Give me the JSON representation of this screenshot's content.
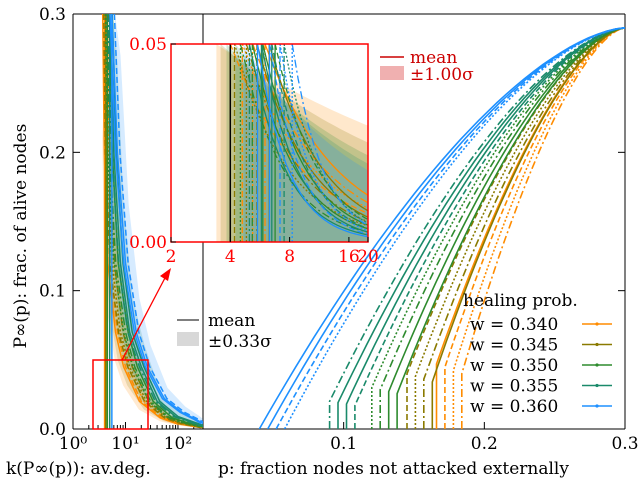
{
  "chart_data": {
    "type": "line",
    "ylabel": "P∞(p): frac. of alive nodes",
    "ylim": [
      0,
      0.3
    ],
    "yticks": [
      "0.0",
      "0.1",
      "0.2",
      "0.3"
    ],
    "series_colors": [
      "#ff8c00",
      "#8a7a00",
      "#2e8b2e",
      "#1a8a6a",
      "#1e90ff"
    ],
    "legend": {
      "title": "healing prob.",
      "placement": "lower-right",
      "entries": [
        "w = 0.340",
        "w = 0.345",
        "w = 0.350",
        "w = 0.355",
        "w = 0.360"
      ]
    },
    "panels": [
      {
        "name": "left",
        "xlabel": "k(P∞(p)): av.deg.",
        "xscale": "log",
        "xlim": [
          1,
          300
        ],
        "xticks": [
          "10⁰",
          "10¹",
          "10²"
        ],
        "band_label": "±0.33σ",
        "mean_label": "mean",
        "series": [
          {
            "w": 0.34,
            "k_threshold": 4.0,
            "x": [
              4.0,
              4.3,
              5,
              7,
              10,
              20,
              50,
              100,
              300
            ],
            "y": [
              0.3,
              0.2,
              0.12,
              0.07,
              0.045,
              0.02,
              0.008,
              0.004,
              0.001
            ]
          },
          {
            "w": 0.345,
            "k_threshold": 4.2,
            "x": [
              4.2,
              4.5,
              5.5,
              8,
              12,
              25,
              60,
              120,
              300
            ],
            "y": [
              0.3,
              0.2,
              0.12,
              0.07,
              0.045,
              0.02,
              0.008,
              0.004,
              0.001
            ]
          },
          {
            "w": 0.35,
            "k_threshold": 4.5,
            "x": [
              4.5,
              5,
              6.5,
              10,
              15,
              30,
              70,
              150,
              300
            ],
            "y": [
              0.3,
              0.2,
              0.12,
              0.07,
              0.045,
              0.02,
              0.008,
              0.004,
              0.0015
            ]
          },
          {
            "w": 0.355,
            "k_threshold": 5.0,
            "x": [
              5.0,
              6,
              8,
              12,
              20,
              40,
              90,
              180,
              300
            ],
            "y": [
              0.3,
              0.2,
              0.12,
              0.07,
              0.045,
              0.02,
              0.009,
              0.005,
              0.002
            ]
          },
          {
            "w": 0.36,
            "k_threshold": 5.5,
            "x": [
              5.5,
              7,
              10,
              16,
              26,
              55,
              120,
              220,
              300
            ],
            "y": [
              0.3,
              0.2,
              0.12,
              0.07,
              0.045,
              0.022,
              0.012,
              0.007,
              0.004
            ]
          }
        ]
      },
      {
        "name": "right",
        "xlabel": "p: fraction nodes not attacked externally",
        "xscale": "linear",
        "xlim": [
          0,
          0.3
        ],
        "xticks": [
          "0.1",
          "0.2",
          "0.3"
        ],
        "series": [
          {
            "w": 0.34,
            "p_c": 0.166,
            "x": [
              0.166,
              0.17,
              0.2,
              0.25,
              0.3
            ],
            "y": [
              0.047,
              0.09,
              0.15,
              0.23,
              0.286
            ]
          },
          {
            "w": 0.345,
            "p_c": 0.145,
            "x": [
              0.145,
              0.15,
              0.2,
              0.25,
              0.3
            ],
            "y": [
              0.04,
              0.075,
              0.158,
              0.234,
              0.288
            ]
          },
          {
            "w": 0.35,
            "p_c": 0.12,
            "x": [
              0.12,
              0.13,
              0.2,
              0.25,
              0.3
            ],
            "y": [
              0.03,
              0.06,
              0.165,
              0.238,
              0.29
            ]
          },
          {
            "w": 0.355,
            "p_c": 0.09,
            "x": [
              0.09,
              0.1,
              0.2,
              0.25,
              0.3
            ],
            "y": [
              0.02,
              0.04,
              0.172,
              0.242,
              0.292
            ]
          },
          {
            "w": 0.36,
            "p_c": 0.04,
            "x": [
              0.04,
              0.05,
              0.1,
              0.2,
              0.3
            ],
            "y": [
              0.0,
              0.01,
              0.08,
              0.185,
              0.295
            ]
          }
        ]
      }
    ],
    "inset": {
      "xscale": "log",
      "xlim": [
        2,
        20
      ],
      "ylim": [
        0,
        0.05
      ],
      "xticks": [
        "2",
        "4",
        "8",
        "16",
        "20"
      ],
      "yticks": [
        "0.00",
        "0.05"
      ],
      "mean_label": "mean",
      "band_label": "±1.00σ",
      "zoom_of": {
        "x": [
          2,
          20
        ],
        "y": [
          0,
          0.05
        ]
      }
    }
  }
}
